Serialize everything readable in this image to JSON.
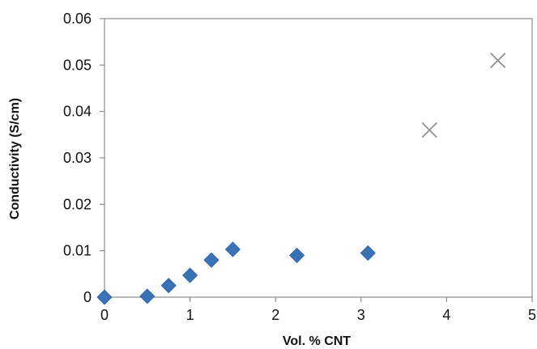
{
  "chart_data": {
    "type": "scatter",
    "title": "",
    "xlabel": "Vol. % CNT",
    "ylabel": "Conductivity (S/cm)",
    "xlim": [
      0,
      5
    ],
    "ylim": [
      0,
      0.06
    ],
    "x_ticks": [
      "0",
      "1",
      "2",
      "3",
      "4",
      "5"
    ],
    "y_ticks": [
      "0",
      "0.01",
      "0.02",
      "0.03",
      "0.04",
      "0.05",
      "0.06"
    ],
    "grid": false,
    "legend": "none",
    "series": [
      {
        "marker": "diamond",
        "color": "#3a72b8",
        "x": [
          0,
          0.5,
          0.75,
          1.0,
          1.25,
          1.5,
          2.25,
          3.08
        ],
        "y": [
          0,
          0.0002,
          0.0025,
          0.0047,
          0.008,
          0.0103,
          0.009,
          0.0095
        ]
      },
      {
        "marker": "x",
        "color": "#909090",
        "x": [
          3.8,
          4.6
        ],
        "y": [
          0.036,
          0.051
        ]
      }
    ]
  }
}
